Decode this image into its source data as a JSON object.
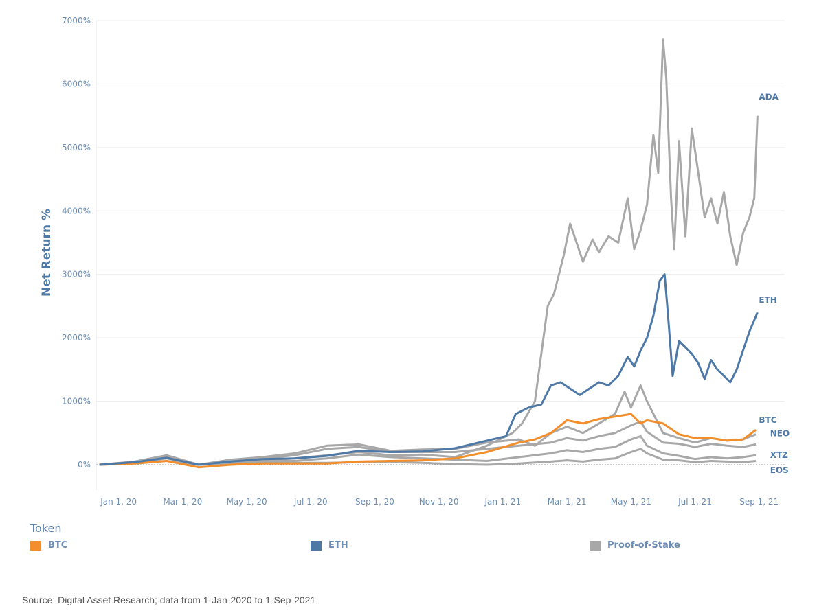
{
  "chart_data": {
    "type": "line",
    "title": "",
    "ylabel": "Net Return %",
    "xlabel": "",
    "ylim": [
      -400,
      7000
    ],
    "yticks": [
      "7000%",
      "6000%",
      "5000%",
      "4000%",
      "3000%",
      "2000%",
      "1000%",
      "0%"
    ],
    "ytick_values": [
      7000,
      6000,
      5000,
      4000,
      3000,
      2000,
      1000,
      0
    ],
    "xdomain_months": [
      -0.7,
      20.8
    ],
    "xticks": [
      "Jan 1, 20",
      "Mar 1, 20",
      "May 1, 20",
      "Jul 1, 20",
      "Sep 1, 20",
      "Nov 1, 20",
      "Jan 1, 21",
      "Mar 1, 21",
      "May 1, 21",
      "Jul 1, 21",
      "Sep 1, 21"
    ],
    "xtick_months": [
      0,
      2,
      4,
      6,
      8,
      10,
      12,
      14,
      16,
      18,
      20
    ],
    "series": [
      {
        "name": "EOS",
        "group": "Proof-of-Stake",
        "color": "#a8a8a8",
        "points": [
          [
            -0.6,
            0
          ],
          [
            0.5,
            20
          ],
          [
            1.5,
            60
          ],
          [
            2.5,
            0
          ],
          [
            3.5,
            20
          ],
          [
            4.5,
            30
          ],
          [
            5.5,
            30
          ],
          [
            6.5,
            30
          ],
          [
            7.5,
            40
          ],
          [
            8.5,
            40
          ],
          [
            9.5,
            30
          ],
          [
            10.5,
            10
          ],
          [
            11.5,
            0
          ],
          [
            12.5,
            20
          ],
          [
            13.5,
            50
          ],
          [
            14,
            70
          ],
          [
            14.5,
            50
          ],
          [
            15,
            80
          ],
          [
            15.5,
            100
          ],
          [
            16,
            200
          ],
          [
            16.3,
            250
          ],
          [
            16.5,
            180
          ],
          [
            17,
            80
          ],
          [
            17.5,
            70
          ],
          [
            18,
            40
          ],
          [
            18.5,
            60
          ],
          [
            19,
            50
          ],
          [
            19.5,
            40
          ],
          [
            19.9,
            60
          ]
        ]
      },
      {
        "name": "XTZ",
        "group": "Proof-of-Stake",
        "color": "#a8a8a8",
        "points": [
          [
            -0.6,
            0
          ],
          [
            0.5,
            30
          ],
          [
            1.5,
            100
          ],
          [
            2.5,
            0
          ],
          [
            3.5,
            40
          ],
          [
            4.5,
            60
          ],
          [
            5.5,
            60
          ],
          [
            6.5,
            100
          ],
          [
            7.5,
            160
          ],
          [
            8.5,
            120
          ],
          [
            9.5,
            100
          ],
          [
            10.5,
            80
          ],
          [
            11.5,
            60
          ],
          [
            12.5,
            120
          ],
          [
            13.5,
            180
          ],
          [
            14,
            230
          ],
          [
            14.5,
            200
          ],
          [
            15,
            250
          ],
          [
            15.5,
            280
          ],
          [
            16,
            400
          ],
          [
            16.3,
            450
          ],
          [
            16.5,
            300
          ],
          [
            17,
            180
          ],
          [
            17.5,
            140
          ],
          [
            18,
            90
          ],
          [
            18.5,
            120
          ],
          [
            19,
            100
          ],
          [
            19.5,
            120
          ],
          [
            19.9,
            150
          ]
        ]
      },
      {
        "name": "NEO",
        "group": "Proof-of-Stake",
        "color": "#a8a8a8",
        "points": [
          [
            -0.6,
            0
          ],
          [
            0.5,
            40
          ],
          [
            1.5,
            120
          ],
          [
            2.5,
            0
          ],
          [
            3.5,
            60
          ],
          [
            4.5,
            100
          ],
          [
            5.5,
            150
          ],
          [
            6.5,
            250
          ],
          [
            7.5,
            280
          ],
          [
            8.5,
            200
          ],
          [
            9.5,
            200
          ],
          [
            10.5,
            200
          ],
          [
            11.5,
            250
          ],
          [
            12.5,
            300
          ],
          [
            13.5,
            350
          ],
          [
            14,
            420
          ],
          [
            14.5,
            380
          ],
          [
            15,
            450
          ],
          [
            15.5,
            500
          ],
          [
            16,
            620
          ],
          [
            16.3,
            680
          ],
          [
            16.5,
            520
          ],
          [
            17,
            350
          ],
          [
            17.5,
            330
          ],
          [
            18,
            280
          ],
          [
            18.5,
            330
          ],
          [
            19,
            300
          ],
          [
            19.5,
            280
          ],
          [
            19.9,
            320
          ]
        ]
      },
      {
        "name": "Proof-of-Stake",
        "group": "Proof-of-Stake",
        "color": "#a8a8a8",
        "points": [
          [
            -0.6,
            0
          ],
          [
            0.5,
            50
          ],
          [
            1.5,
            150
          ],
          [
            2.5,
            0
          ],
          [
            3.5,
            80
          ],
          [
            4.5,
            120
          ],
          [
            5.5,
            180
          ],
          [
            6.5,
            300
          ],
          [
            7.5,
            320
          ],
          [
            8.5,
            220
          ],
          [
            9.5,
            240
          ],
          [
            10.5,
            250
          ],
          [
            11.5,
            350
          ],
          [
            12.5,
            400
          ],
          [
            13,
            300
          ],
          [
            13.5,
            500
          ],
          [
            14,
            600
          ],
          [
            14.5,
            500
          ],
          [
            15,
            650
          ],
          [
            15.5,
            800
          ],
          [
            15.8,
            1150
          ],
          [
            16,
            900
          ],
          [
            16.3,
            1250
          ],
          [
            16.5,
            1000
          ],
          [
            17,
            500
          ],
          [
            17.5,
            420
          ],
          [
            18,
            350
          ],
          [
            18.5,
            420
          ],
          [
            19,
            380
          ],
          [
            19.5,
            400
          ],
          [
            19.9,
            480
          ]
        ]
      },
      {
        "name": "ADA",
        "group": "Proof-of-Stake",
        "color": "#a8a8a8",
        "points": [
          [
            -0.6,
            0
          ],
          [
            0.5,
            30
          ],
          [
            1.5,
            120
          ],
          [
            2.5,
            0
          ],
          [
            3.5,
            50
          ],
          [
            4.5,
            70
          ],
          [
            5.5,
            100
          ],
          [
            6.5,
            150
          ],
          [
            7.5,
            200
          ],
          [
            8.5,
            150
          ],
          [
            9.5,
            160
          ],
          [
            10.5,
            120
          ],
          [
            11.5,
            300
          ],
          [
            12.3,
            500
          ],
          [
            12.6,
            650
          ],
          [
            13,
            1000
          ],
          [
            13.4,
            2500
          ],
          [
            13.6,
            2700
          ],
          [
            13.9,
            3300
          ],
          [
            14.1,
            3800
          ],
          [
            14.3,
            3500
          ],
          [
            14.5,
            3200
          ],
          [
            14.8,
            3550
          ],
          [
            15,
            3350
          ],
          [
            15.3,
            3600
          ],
          [
            15.6,
            3500
          ],
          [
            15.9,
            4200
          ],
          [
            16.1,
            3400
          ],
          [
            16.3,
            3700
          ],
          [
            16.5,
            4100
          ],
          [
            16.7,
            5200
          ],
          [
            16.85,
            4600
          ],
          [
            17,
            6700
          ],
          [
            17.1,
            6100
          ],
          [
            17.25,
            4200
          ],
          [
            17.35,
            3400
          ],
          [
            17.5,
            5100
          ],
          [
            17.7,
            3600
          ],
          [
            17.9,
            5300
          ],
          [
            18.1,
            4600
          ],
          [
            18.3,
            3900
          ],
          [
            18.5,
            4200
          ],
          [
            18.7,
            3800
          ],
          [
            18.9,
            4300
          ],
          [
            19.1,
            3600
          ],
          [
            19.3,
            3150
          ],
          [
            19.5,
            3650
          ],
          [
            19.7,
            3900
          ],
          [
            19.85,
            4200
          ],
          [
            19.95,
            5500
          ]
        ]
      },
      {
        "name": "BTC",
        "group": "BTC",
        "color": "#f28e2b",
        "points": [
          [
            -0.6,
            0
          ],
          [
            0.5,
            20
          ],
          [
            1.5,
            60
          ],
          [
            2.5,
            -40
          ],
          [
            3.5,
            0
          ],
          [
            4.5,
            20
          ],
          [
            5.5,
            20
          ],
          [
            6.5,
            20
          ],
          [
            7.5,
            50
          ],
          [
            8.5,
            60
          ],
          [
            9.5,
            70
          ],
          [
            10.5,
            100
          ],
          [
            11.5,
            200
          ],
          [
            12.5,
            350
          ],
          [
            13,
            400
          ],
          [
            13.5,
            500
          ],
          [
            14,
            700
          ],
          [
            14.5,
            650
          ],
          [
            15,
            720
          ],
          [
            15.5,
            760
          ],
          [
            16,
            800
          ],
          [
            16.3,
            650
          ],
          [
            16.5,
            700
          ],
          [
            17,
            650
          ],
          [
            17.5,
            480
          ],
          [
            18,
            420
          ],
          [
            18.5,
            420
          ],
          [
            19,
            380
          ],
          [
            19.5,
            400
          ],
          [
            19.9,
            550
          ]
        ]
      },
      {
        "name": "ETH",
        "group": "ETH",
        "color": "#4e79a7",
        "points": [
          [
            -0.6,
            0
          ],
          [
            0.5,
            40
          ],
          [
            1.5,
            110
          ],
          [
            2.5,
            0
          ],
          [
            3.5,
            50
          ],
          [
            4.5,
            90
          ],
          [
            5.5,
            100
          ],
          [
            6.5,
            140
          ],
          [
            7.5,
            220
          ],
          [
            8.5,
            200
          ],
          [
            9.5,
            210
          ],
          [
            10.5,
            260
          ],
          [
            11.5,
            380
          ],
          [
            12.1,
            450
          ],
          [
            12.4,
            800
          ],
          [
            12.8,
            900
          ],
          [
            13.2,
            950
          ],
          [
            13.5,
            1250
          ],
          [
            13.8,
            1300
          ],
          [
            14.1,
            1200
          ],
          [
            14.4,
            1100
          ],
          [
            14.7,
            1200
          ],
          [
            15,
            1300
          ],
          [
            15.3,
            1250
          ],
          [
            15.6,
            1400
          ],
          [
            15.9,
            1700
          ],
          [
            16.1,
            1550
          ],
          [
            16.3,
            1800
          ],
          [
            16.5,
            2000
          ],
          [
            16.7,
            2350
          ],
          [
            16.9,
            2900
          ],
          [
            17.05,
            3000
          ],
          [
            17.15,
            2400
          ],
          [
            17.3,
            1400
          ],
          [
            17.5,
            1950
          ],
          [
            17.7,
            1850
          ],
          [
            17.9,
            1750
          ],
          [
            18.1,
            1600
          ],
          [
            18.3,
            1350
          ],
          [
            18.5,
            1650
          ],
          [
            18.7,
            1500
          ],
          [
            18.9,
            1400
          ],
          [
            19.1,
            1300
          ],
          [
            19.3,
            1500
          ],
          [
            19.5,
            1800
          ],
          [
            19.7,
            2100
          ],
          [
            19.95,
            2400
          ]
        ]
      }
    ],
    "end_labels": [
      "ADA",
      "ETH",
      "BTC",
      "NEO",
      "XTZ",
      "EOS"
    ]
  },
  "legend": {
    "title": "Token",
    "items": [
      {
        "label": "BTC",
        "color": "#f28e2b"
      },
      {
        "label": "ETH",
        "color": "#4e79a7"
      },
      {
        "label": "Proof-of-Stake",
        "color": "#a8a8a8"
      }
    ]
  },
  "footer": {
    "source": "Source: Digital Asset Research; data from 1-Jan-2020 to 1-Sep-2021"
  }
}
